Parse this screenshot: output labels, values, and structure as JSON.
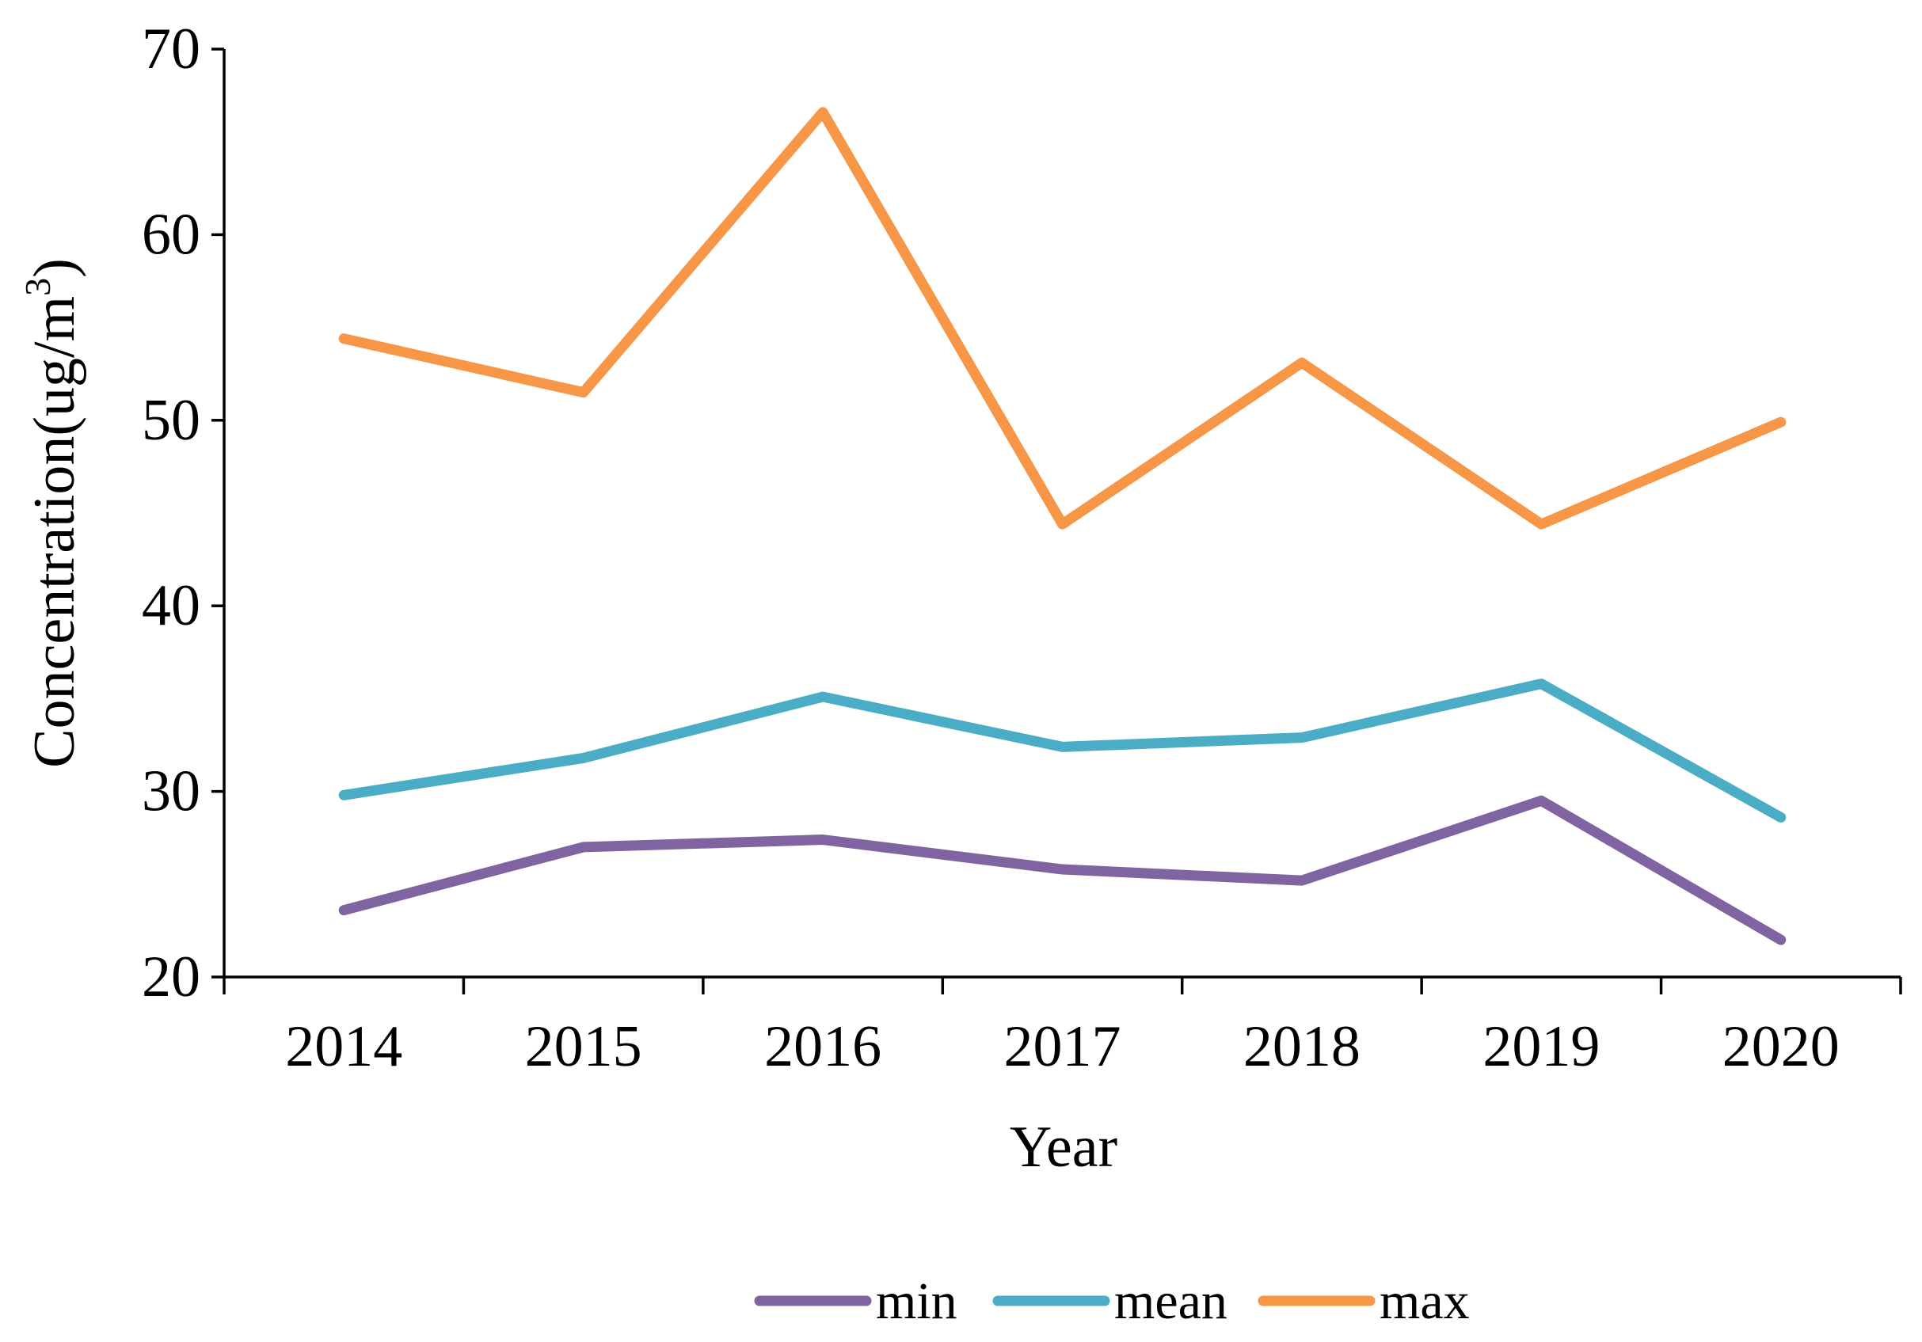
{
  "chart_data": {
    "type": "line",
    "title": "",
    "xlabel": "Year",
    "ylabel": "Concentration(ug/m",
    "ylabel_sup": "3",
    "ylabel_close": ")",
    "categories": [
      "2014",
      "2015",
      "2016",
      "2017",
      "2018",
      "2019",
      "2020"
    ],
    "ylim": [
      20,
      70
    ],
    "yticks": [
      20,
      30,
      40,
      50,
      60,
      70
    ],
    "grid": false,
    "legend_position": "bottom-center",
    "series": [
      {
        "name": "min",
        "color": "#8064a2",
        "values": [
          23.6,
          27.0,
          27.4,
          25.8,
          25.2,
          29.5,
          22.0
        ]
      },
      {
        "name": "mean",
        "color": "#4bacc6",
        "values": [
          29.8,
          31.8,
          35.1,
          32.4,
          32.9,
          35.8,
          28.6
        ]
      },
      {
        "name": "max",
        "color": "#f79646",
        "values": [
          54.4,
          51.5,
          66.6,
          44.4,
          53.1,
          44.4,
          49.9
        ]
      }
    ]
  }
}
